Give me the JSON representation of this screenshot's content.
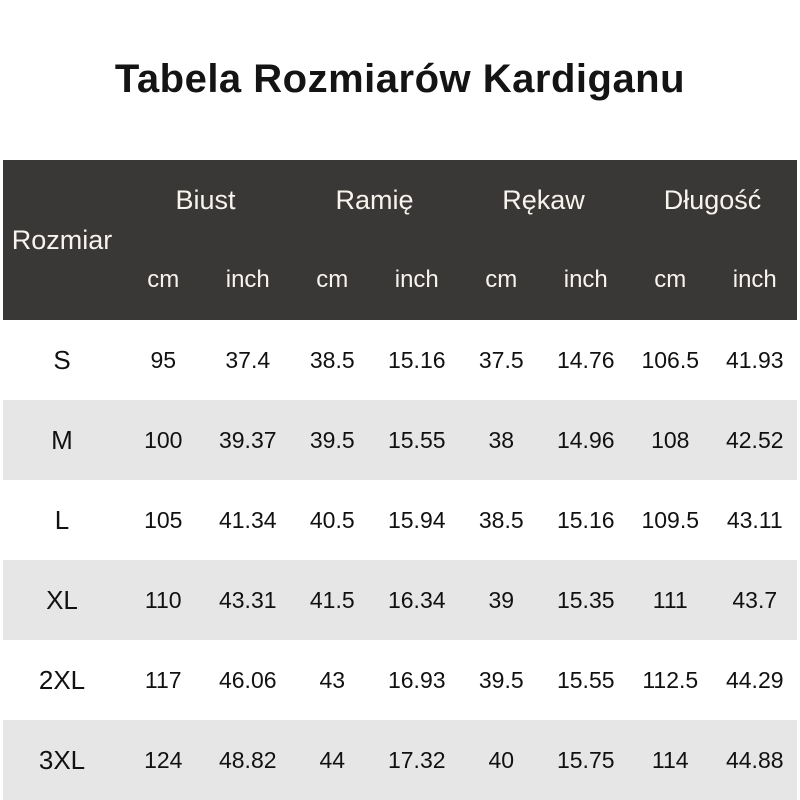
{
  "title": "Tabela Rozmiarów Kardiganu",
  "table": {
    "size_col_header": "Rozmiar",
    "groups": [
      {
        "label": "Biust"
      },
      {
        "label": "Ramię"
      },
      {
        "label": "Rękaw"
      },
      {
        "label": "Długość"
      }
    ],
    "unit_cm": "cm",
    "unit_inch": "inch",
    "rows": [
      {
        "size": "S",
        "values": [
          "95",
          "37.4",
          "38.5",
          "15.16",
          "37.5",
          "14.76",
          "106.5",
          "41.93"
        ]
      },
      {
        "size": "M",
        "values": [
          "100",
          "39.37",
          "39.5",
          "15.55",
          "38",
          "14.96",
          "108",
          "42.52"
        ]
      },
      {
        "size": "L",
        "values": [
          "105",
          "41.34",
          "40.5",
          "15.94",
          "38.5",
          "15.16",
          "109.5",
          "43.11"
        ]
      },
      {
        "size": "XL",
        "values": [
          "110",
          "43.31",
          "41.5",
          "16.34",
          "39",
          "15.35",
          "111",
          "43.7"
        ]
      },
      {
        "size": "2XL",
        "values": [
          "117",
          "46.06",
          "43",
          "16.93",
          "39.5",
          "15.55",
          "112.5",
          "44.29"
        ]
      },
      {
        "size": "3XL",
        "values": [
          "124",
          "48.82",
          "44",
          "17.32",
          "40",
          "15.75",
          "114",
          "44.88"
        ]
      }
    ]
  },
  "colors": {
    "header_bg": "#3a3737",
    "header_text": "#f7f3ed",
    "row_bg": "#ffffff",
    "row_alt_bg": "#e7e6e6",
    "body_text": "#111111"
  }
}
